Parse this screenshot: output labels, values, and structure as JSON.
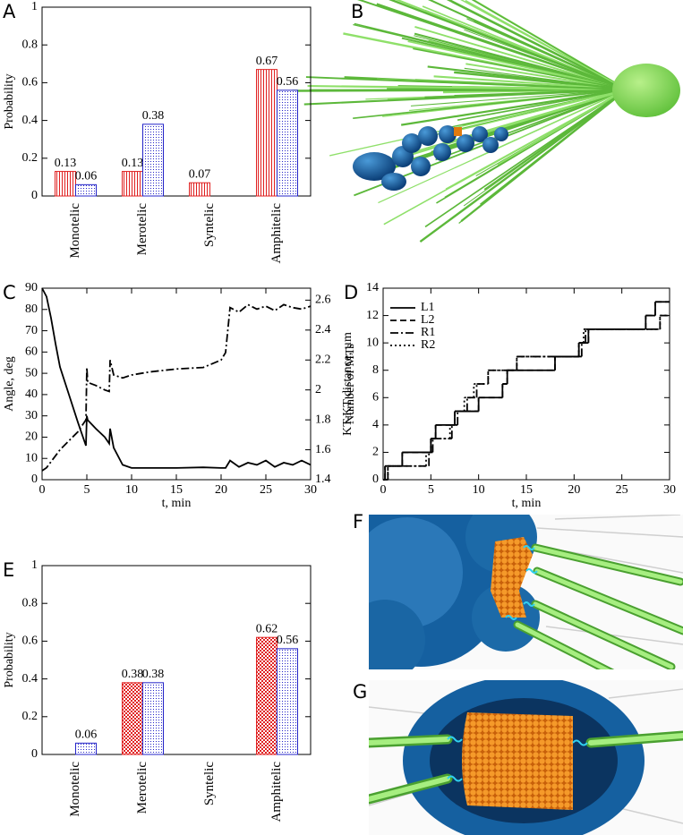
{
  "chart_data": [
    {
      "panel": "A",
      "type": "bar",
      "ylabel": "Probability",
      "categories": [
        "Monotelic",
        "Merotelic",
        "Syntelic",
        "Amphitelic"
      ],
      "series": [
        {
          "color": "#e02020",
          "pattern": "vertical-lines",
          "values": [
            0.13,
            0.13,
            0.07,
            0.67
          ]
        },
        {
          "color": "#2424c8",
          "pattern": "dots",
          "values": [
            0.06,
            0.38,
            null,
            0.56
          ]
        }
      ],
      "ylim": [
        0,
        1
      ],
      "yticks": [
        0,
        0.2,
        0.4,
        0.6,
        0.8,
        1
      ]
    },
    {
      "panel": "C",
      "type": "line",
      "xlabel": "t, min",
      "ylabel": "Angle, deg",
      "y2label": "KT-KT distance, µm",
      "x": [
        0,
        0.5,
        1,
        1.5,
        2,
        3,
        4,
        4.9,
        5,
        5.1,
        6,
        7,
        7.5,
        7.6,
        8,
        9,
        10,
        12,
        15,
        18,
        20,
        20.5,
        21,
        22,
        23,
        24,
        25,
        26,
        27,
        28,
        29,
        30
      ],
      "series": [
        {
          "color": "#000000",
          "dash": "solid",
          "values": [
            90,
            86,
            76,
            64,
            53,
            40,
            27,
            16,
            30,
            28,
            24,
            20,
            17,
            24,
            15,
            7,
            5.5,
            5.5,
            5.5,
            5.8,
            5.5,
            5.5,
            9,
            6,
            8,
            7,
            9,
            6,
            8,
            7,
            9,
            7
          ]
        },
        {
          "color": "#000000",
          "dash": "dashdot",
          "axis": "y2",
          "values": [
            1.46,
            1.48,
            1.52,
            1.56,
            1.6,
            1.66,
            1.72,
            1.8,
            2.15,
            2.05,
            2.03,
            2.0,
            1.99,
            2.2,
            2.1,
            2.08,
            2.1,
            2.12,
            2.14,
            2.15,
            2.2,
            2.25,
            2.55,
            2.52,
            2.57,
            2.54,
            2.56,
            2.53,
            2.57,
            2.55,
            2.54,
            2.56
          ]
        }
      ],
      "xlim": [
        0,
        30
      ],
      "xticks": [
        0,
        5,
        10,
        15,
        20,
        25,
        30
      ],
      "ylim": [
        0,
        90
      ],
      "yticks": [
        0,
        10,
        20,
        30,
        40,
        50,
        60,
        70,
        80,
        90
      ],
      "y2lim": [
        1.4,
        2.68
      ],
      "y2ticks": [
        1.4,
        1.6,
        1.8,
        2,
        2.2,
        2.4,
        2.6
      ]
    },
    {
      "panel": "D",
      "type": "line",
      "step": true,
      "xlabel": "t, min",
      "ylabel": "Number of MTs",
      "legend": "upper left",
      "series": [
        {
          "name": "L1",
          "color": "#000000",
          "dash": "solid",
          "x": [
            0,
            0.2,
            2,
            5,
            5.5,
            7.5,
            10,
            12.5,
            13,
            18,
            20.5,
            21.5,
            27.5,
            28.5,
            30
          ],
          "values": [
            0,
            1,
            2,
            3,
            4,
            5,
            6,
            7,
            8,
            9,
            10,
            11,
            12,
            13,
            13
          ]
        },
        {
          "name": "L2",
          "color": "#000000",
          "dash": "dashed",
          "x": [
            0,
            0.2,
            2,
            5,
            5.5,
            7.5,
            10,
            12.5,
            13,
            18,
            20.5,
            21.5,
            27.5,
            28.5,
            30
          ],
          "values": [
            0,
            1,
            2,
            3,
            4,
            5,
            6,
            7,
            8,
            9,
            10,
            11,
            12,
            13,
            13
          ]
        },
        {
          "name": "R1",
          "color": "#000000",
          "dash": "dashdot",
          "x": [
            0,
            0.5,
            4.8,
            5.2,
            7.2,
            7.8,
            8.8,
            9.8,
            11,
            13,
            14,
            20,
            20.8,
            21.2,
            28,
            29,
            30
          ],
          "values": [
            0,
            1,
            2,
            3,
            4,
            5,
            6,
            7,
            8,
            8,
            9,
            9,
            10,
            11,
            11,
            12,
            12
          ]
        },
        {
          "name": "R2",
          "color": "#000000",
          "dash": "dotted",
          "x": [
            0,
            0.5,
            4.5,
            5,
            7,
            7.5,
            8.5,
            9.5,
            11,
            13,
            14,
            20,
            20.5,
            21,
            28,
            29,
            30
          ],
          "values": [
            0,
            1,
            2,
            3,
            4,
            5,
            6,
            7,
            8,
            8,
            9,
            9,
            10,
            11,
            11,
            12,
            12
          ]
        }
      ],
      "xlim": [
        0,
        30
      ],
      "xticks": [
        0,
        5,
        10,
        15,
        20,
        25,
        30
      ],
      "ylim": [
        0,
        14
      ],
      "yticks": [
        0,
        2,
        4,
        6,
        8,
        10,
        12,
        14
      ]
    },
    {
      "panel": "E",
      "type": "bar",
      "ylabel": "Probability",
      "categories": [
        "Monotelic",
        "Merotelic",
        "Syntelic",
        "Amphitelic"
      ],
      "series": [
        {
          "color": "#e02020",
          "pattern": "checker",
          "values": [
            null,
            0.38,
            null,
            0.62
          ]
        },
        {
          "color": "#2424c8",
          "pattern": "dots",
          "values": [
            0.06,
            0.38,
            null,
            0.56
          ]
        }
      ],
      "ylim": [
        0,
        1
      ],
      "yticks": [
        0,
        0.2,
        0.4,
        0.6,
        0.8,
        1
      ]
    }
  ],
  "image_panels": [
    {
      "label": "B"
    },
    {
      "label": "F"
    },
    {
      "label": "G"
    }
  ]
}
